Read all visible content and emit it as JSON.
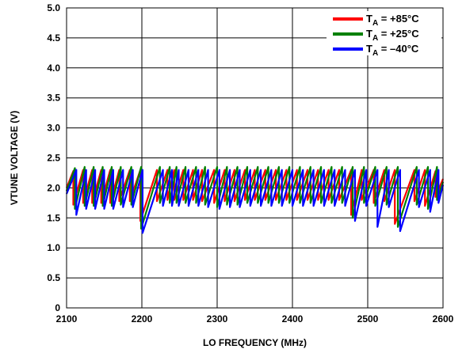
{
  "chart_data": {
    "type": "line",
    "title": "",
    "xlabel": "LO FREQUENCY (MHz)",
    "ylabel": "VTUNE VOLTAGE (V)",
    "xlim": [
      2100,
      2600
    ],
    "ylim": [
      0,
      5.0
    ],
    "xticks": [
      "2100",
      "2200",
      "2300",
      "2400",
      "2500",
      "2600"
    ],
    "yticks": [
      "0",
      "0.5",
      "1.0",
      "1.5",
      "2.0",
      "2.5",
      "3.0",
      "3.5",
      "4.0",
      "4.5",
      "5.0"
    ],
    "grid": true,
    "legend_position": "top-right",
    "series": [
      {
        "name": "+85°C",
        "legend_prefix": "T",
        "legend_sub": "A",
        "legend_eq": " = ",
        "color": "#ff0000",
        "x": [
          2100,
          2109,
          2109,
          2122,
          2122,
          2134,
          2134,
          2146,
          2146,
          2158,
          2158,
          2170,
          2170,
          2184,
          2184,
          2198,
          2198,
          2220,
          2220,
          2234,
          2234,
          2243,
          2243,
          2255,
          2255,
          2268,
          2268,
          2280,
          2280,
          2296,
          2296,
          2310,
          2310,
          2323,
          2323,
          2337,
          2337,
          2350,
          2350,
          2364,
          2364,
          2378,
          2378,
          2392,
          2392,
          2406,
          2406,
          2420,
          2420,
          2434,
          2434,
          2448,
          2448,
          2462,
          2462,
          2478,
          2478,
          2492,
          2492,
          2508,
          2508,
          2522,
          2522,
          2536,
          2536,
          2562,
          2562,
          2576,
          2576,
          2590,
          2590,
          2600
        ],
        "y": [
          2.0,
          2.28,
          1.72,
          2.3,
          1.75,
          2.3,
          1.75,
          2.3,
          1.75,
          2.3,
          1.75,
          2.3,
          1.78,
          2.3,
          1.78,
          2.3,
          1.45,
          2.3,
          1.78,
          2.3,
          1.8,
          2.3,
          1.8,
          2.3,
          1.8,
          2.3,
          1.8,
          2.3,
          1.78,
          2.3,
          1.75,
          2.3,
          1.78,
          2.3,
          1.78,
          2.3,
          1.8,
          2.3,
          1.8,
          2.3,
          1.8,
          2.3,
          1.8,
          2.3,
          1.8,
          2.3,
          1.8,
          2.3,
          1.8,
          2.3,
          1.8,
          2.3,
          1.8,
          2.3,
          1.8,
          2.3,
          1.55,
          2.3,
          1.8,
          2.3,
          1.75,
          2.3,
          1.78,
          2.3,
          1.4,
          2.3,
          1.78,
          2.3,
          1.7,
          2.28,
          1.85,
          2.15
        ]
      },
      {
        "name": "+25°C",
        "legend_prefix": "T",
        "legend_sub": "A",
        "legend_eq": " = ",
        "color": "#008000",
        "x": [
          2100,
          2111,
          2111,
          2124,
          2124,
          2136,
          2136,
          2148,
          2148,
          2160,
          2160,
          2172,
          2172,
          2186,
          2186,
          2199,
          2199,
          2224,
          2224,
          2237,
          2237,
          2246,
          2246,
          2258,
          2258,
          2272,
          2272,
          2284,
          2284,
          2300,
          2300,
          2313,
          2313,
          2327,
          2327,
          2340,
          2340,
          2354,
          2354,
          2368,
          2368,
          2382,
          2382,
          2396,
          2396,
          2410,
          2410,
          2424,
          2424,
          2438,
          2438,
          2452,
          2452,
          2466,
          2466,
          2480,
          2480,
          2495,
          2495,
          2510,
          2510,
          2525,
          2525,
          2540,
          2540,
          2565,
          2565,
          2580,
          2580,
          2592,
          2592,
          2600
        ],
        "y": [
          1.95,
          2.33,
          1.65,
          2.35,
          1.7,
          2.35,
          1.7,
          2.35,
          1.7,
          2.35,
          1.7,
          2.35,
          1.72,
          2.35,
          1.72,
          2.35,
          1.32,
          2.35,
          1.75,
          2.35,
          1.75,
          2.35,
          1.75,
          2.35,
          1.75,
          2.35,
          1.75,
          2.35,
          1.72,
          2.35,
          1.68,
          2.35,
          1.72,
          2.35,
          1.72,
          2.35,
          1.75,
          2.35,
          1.75,
          2.35,
          1.75,
          2.35,
          1.75,
          2.35,
          1.75,
          2.35,
          1.75,
          2.35,
          1.75,
          2.35,
          1.75,
          2.35,
          1.75,
          2.35,
          1.75,
          2.35,
          1.5,
          2.35,
          1.75,
          2.35,
          1.7,
          2.35,
          1.72,
          2.35,
          1.35,
          2.35,
          1.72,
          2.35,
          1.65,
          2.35,
          1.8,
          2.1
        ]
      },
      {
        "name": "–40°C",
        "legend_prefix": "T",
        "legend_sub": "A",
        "legend_eq": " = ",
        "color": "#0000ff",
        "x": [
          2100,
          2113,
          2113,
          2126,
          2126,
          2138,
          2138,
          2150,
          2150,
          2162,
          2162,
          2175,
          2175,
          2188,
          2188,
          2201,
          2201,
          2228,
          2228,
          2240,
          2240,
          2249,
          2249,
          2262,
          2262,
          2275,
          2275,
          2288,
          2288,
          2303,
          2303,
          2317,
          2317,
          2330,
          2330,
          2344,
          2344,
          2358,
          2358,
          2372,
          2372,
          2386,
          2386,
          2400,
          2400,
          2414,
          2414,
          2428,
          2428,
          2442,
          2442,
          2456,
          2456,
          2470,
          2470,
          2483,
          2483,
          2498,
          2498,
          2513,
          2513,
          2528,
          2528,
          2543,
          2543,
          2568,
          2568,
          2583,
          2583,
          2594,
          2594,
          2600
        ],
        "y": [
          1.9,
          2.3,
          1.55,
          2.3,
          1.65,
          2.3,
          1.65,
          2.3,
          1.65,
          2.3,
          1.65,
          2.3,
          1.68,
          2.3,
          1.68,
          2.3,
          1.25,
          2.3,
          1.7,
          2.3,
          1.7,
          2.3,
          1.7,
          2.3,
          1.7,
          2.3,
          1.7,
          2.3,
          1.68,
          2.3,
          1.65,
          2.3,
          1.68,
          2.3,
          1.68,
          2.3,
          1.7,
          2.3,
          1.7,
          2.3,
          1.7,
          2.3,
          1.7,
          2.3,
          1.7,
          2.3,
          1.7,
          2.3,
          1.7,
          2.3,
          1.7,
          2.3,
          1.7,
          2.3,
          1.7,
          2.3,
          1.45,
          2.3,
          1.7,
          2.3,
          1.35,
          2.3,
          1.68,
          2.3,
          1.28,
          2.3,
          1.68,
          2.3,
          1.6,
          2.3,
          1.75,
          2.05
        ]
      }
    ]
  }
}
